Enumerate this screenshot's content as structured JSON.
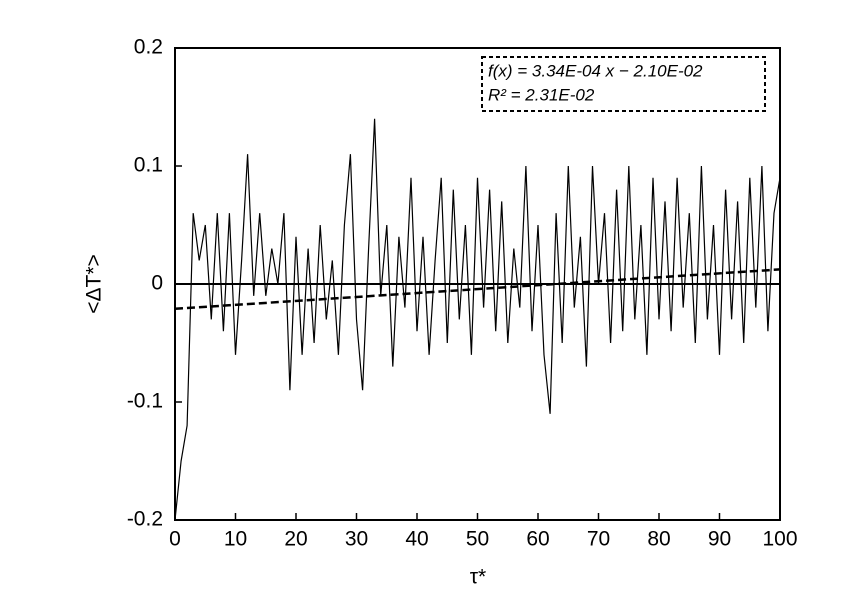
{
  "chart_data": {
    "type": "line",
    "xlabel": "τ*",
    "ylabel": "<ΔT*>",
    "annotations": [
      "f(x) = 3.34E-04 x − 2.10E-02",
      "R² = 2.31E-02"
    ],
    "xlim": [
      0,
      100
    ],
    "ylim": [
      -0.2,
      0.2
    ],
    "xticks": [
      0,
      10,
      20,
      30,
      40,
      50,
      60,
      70,
      80,
      90,
      100
    ],
    "yticks": [
      -0.2,
      -0.1,
      0,
      0.1,
      0.2
    ],
    "hline": 0,
    "series": [
      {
        "color": "#000000",
        "style": "solid",
        "x": [
          0,
          1,
          2,
          3,
          4,
          5,
          6,
          7,
          8,
          9,
          10,
          11,
          12,
          13,
          14,
          15,
          16,
          17,
          18,
          19,
          20,
          21,
          22,
          23,
          24,
          25,
          26,
          27,
          28,
          29,
          30,
          31,
          32,
          33,
          34,
          35,
          36,
          37,
          38,
          39,
          40,
          41,
          42,
          43,
          44,
          45,
          46,
          47,
          48,
          49,
          50,
          51,
          52,
          53,
          54,
          55,
          56,
          57,
          58,
          59,
          60,
          61,
          62,
          63,
          64,
          65,
          66,
          67,
          68,
          69,
          70,
          71,
          72,
          73,
          74,
          75,
          76,
          77,
          78,
          79,
          80,
          81,
          82,
          83,
          84,
          85,
          86,
          87,
          88,
          89,
          90,
          91,
          92,
          93,
          94,
          95,
          96,
          97,
          98,
          99,
          100
        ],
        "values": [
          -0.2,
          -0.15,
          -0.12,
          0.06,
          0.02,
          0.05,
          -0.03,
          0.06,
          -0.04,
          0.06,
          -0.06,
          0.02,
          0.11,
          -0.01,
          0.06,
          -0.01,
          0.03,
          0.0,
          0.06,
          -0.09,
          0.04,
          -0.06,
          0.03,
          -0.05,
          0.05,
          -0.03,
          0.02,
          -0.06,
          0.05,
          0.11,
          -0.03,
          -0.09,
          0.03,
          0.14,
          -0.01,
          0.05,
          -0.07,
          0.04,
          -0.02,
          0.09,
          -0.04,
          0.04,
          -0.06,
          0.02,
          0.09,
          -0.05,
          0.08,
          -0.03,
          0.05,
          -0.06,
          0.09,
          -0.02,
          0.08,
          -0.04,
          0.07,
          -0.05,
          0.03,
          -0.02,
          0.1,
          -0.04,
          0.05,
          -0.06,
          -0.11,
          0.06,
          -0.05,
          0.1,
          -0.02,
          0.04,
          -0.07,
          0.1,
          0.0,
          0.06,
          -0.05,
          0.08,
          -0.04,
          0.1,
          -0.03,
          0.05,
          -0.06,
          0.09,
          -0.03,
          0.07,
          -0.04,
          0.09,
          -0.02,
          0.06,
          -0.05,
          0.1,
          -0.03,
          0.05,
          -0.06,
          0.08,
          -0.03,
          0.07,
          -0.05,
          0.09,
          -0.02,
          0.1,
          -0.04,
          0.06,
          0.09
        ]
      },
      {
        "color": "#000000",
        "style": "dashed",
        "x": [
          0,
          100
        ],
        "values": [
          -0.021,
          0.0124
        ]
      }
    ]
  }
}
